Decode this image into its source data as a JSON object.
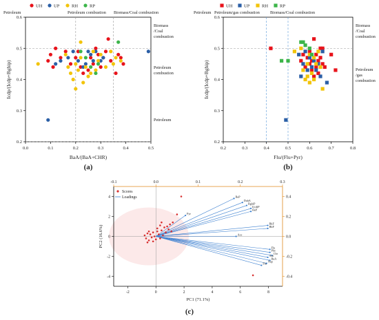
{
  "chart_data": [
    {
      "type": "scatter",
      "panel_label": "(a)",
      "xlabel": "BaA/(BaA+CHR)",
      "ylabel": "Icdp/(Icdp+Bghip)",
      "xlim": [
        0.0,
        0.5
      ],
      "ylim": [
        0.2,
        0.6
      ],
      "xticks": [
        "0.0",
        "0.1",
        "0.2",
        "0.3",
        "0.4",
        "0.5"
      ],
      "yticks": [
        "0.2",
        "0.3",
        "0.4",
        "0.5",
        "0.6"
      ],
      "grid": false,
      "legend": [
        "UH",
        "UP",
        "RH",
        "RP"
      ],
      "thresholds_x": [
        0.2,
        0.35
      ],
      "thresholds_y": [
        0.2,
        0.5
      ],
      "top_zone_labels": [
        "Petroleum",
        "Petroleum combustion",
        "Biomass/Coal combustion"
      ],
      "right_zone_labels": [
        [
          "Biomass",
          "/Coal",
          "combustion"
        ],
        [
          "Petroleum",
          "combustion"
        ],
        [
          "Petroleum"
        ]
      ],
      "series": [
        {
          "name": "UH",
          "color": "#e8131b",
          "points": [
            [
              0.09,
              0.46
            ],
            [
              0.1,
              0.48
            ],
            [
              0.11,
              0.44
            ],
            [
              0.12,
              0.5
            ],
            [
              0.14,
              0.47
            ],
            [
              0.16,
              0.49
            ],
            [
              0.18,
              0.45
            ],
            [
              0.2,
              0.47
            ],
            [
              0.21,
              0.49
            ],
            [
              0.22,
              0.44
            ],
            [
              0.23,
              0.42
            ],
            [
              0.25,
              0.43
            ],
            [
              0.26,
              0.47
            ],
            [
              0.27,
              0.45
            ],
            [
              0.28,
              0.5
            ],
            [
              0.29,
              0.48
            ],
            [
              0.3,
              0.44
            ],
            [
              0.31,
              0.47
            ],
            [
              0.32,
              0.49
            ],
            [
              0.33,
              0.53
            ],
            [
              0.34,
              0.46
            ],
            [
              0.36,
              0.42
            ],
            [
              0.37,
              0.48
            ],
            [
              0.38,
              0.47
            ],
            [
              0.39,
              0.45
            ]
          ]
        },
        {
          "name": "UP",
          "color": "#2b5fa6",
          "points": [
            [
              0.09,
              0.27
            ],
            [
              0.12,
              0.45
            ],
            [
              0.14,
              0.46
            ],
            [
              0.17,
              0.47
            ],
            [
              0.19,
              0.49
            ],
            [
              0.21,
              0.46
            ],
            [
              0.23,
              0.44
            ],
            [
              0.24,
              0.45
            ],
            [
              0.25,
              0.49
            ],
            [
              0.26,
              0.48
            ],
            [
              0.27,
              0.46
            ],
            [
              0.28,
              0.49
            ],
            [
              0.3,
              0.46
            ],
            [
              0.31,
              0.47
            ],
            [
              0.49,
              0.49
            ]
          ]
        },
        {
          "name": "RH",
          "color": "#f2c40b",
          "points": [
            [
              0.05,
              0.45
            ],
            [
              0.16,
              0.48
            ],
            [
              0.17,
              0.44
            ],
            [
              0.18,
              0.42
            ],
            [
              0.19,
              0.4
            ],
            [
              0.2,
              0.37
            ],
            [
              0.2,
              0.45
            ],
            [
              0.21,
              0.43
            ],
            [
              0.22,
              0.47
            ],
            [
              0.22,
              0.52
            ],
            [
              0.23,
              0.39
            ],
            [
              0.24,
              0.44
            ],
            [
              0.25,
              0.41
            ],
            [
              0.26,
              0.42
            ],
            [
              0.27,
              0.49
            ],
            [
              0.28,
              0.43
            ],
            [
              0.29,
              0.46
            ],
            [
              0.3,
              0.48
            ],
            [
              0.32,
              0.44
            ],
            [
              0.34,
              0.49
            ],
            [
              0.35,
              0.45
            ],
            [
              0.36,
              0.47
            ],
            [
              0.38,
              0.46
            ]
          ]
        },
        {
          "name": "RP",
          "color": "#3cb54a",
          "points": [
            [
              0.22,
              0.49
            ],
            [
              0.24,
              0.47
            ],
            [
              0.26,
              0.44
            ],
            [
              0.28,
              0.42
            ],
            [
              0.29,
              0.45
            ],
            [
              0.37,
              0.52
            ]
          ]
        }
      ]
    },
    {
      "type": "scatter",
      "panel_label": "(b)",
      "xlabel": "Flu/(Flu+Pyr)",
      "ylabel": "Icdp/(Icdp+Bghip)",
      "xlim": [
        0.2,
        0.8
      ],
      "ylim": [
        0.2,
        0.6
      ],
      "xticks": [
        "0.2",
        "0.3",
        "0.4",
        "0.5",
        "0.6",
        "0.7",
        "0.8"
      ],
      "yticks": [
        "0.2",
        "0.3",
        "0.4",
        "0.5",
        "0.6"
      ],
      "grid": false,
      "legend": [
        "UH",
        "UP",
        "RH",
        "RP"
      ],
      "thresholds_x": [
        0.4,
        0.5
      ],
      "thresholds_y": [
        0.5
      ],
      "top_zone_labels": [
        "Petroleum",
        "Petroleum/gas combustion",
        "Biomass/Coal combustion"
      ],
      "right_zone_labels": [
        [
          "Biomass",
          "/Coal",
          "combustion"
        ],
        [
          "Petroleum",
          "/gas",
          "combustion"
        ]
      ],
      "series": [
        {
          "name": "UH",
          "color": "#e8131b",
          "points": [
            [
              0.42,
              0.5
            ],
            [
              0.56,
              0.46
            ],
            [
              0.57,
              0.48
            ],
            [
              0.58,
              0.44
            ],
            [
              0.59,
              0.47
            ],
            [
              0.6,
              0.45
            ],
            [
              0.6,
              0.49
            ],
            [
              0.61,
              0.43
            ],
            [
              0.61,
              0.46
            ],
            [
              0.62,
              0.53
            ],
            [
              0.62,
              0.41
            ],
            [
              0.63,
              0.48
            ],
            [
              0.63,
              0.44
            ],
            [
              0.64,
              0.46
            ],
            [
              0.64,
              0.42
            ],
            [
              0.65,
              0.5
            ],
            [
              0.65,
              0.47
            ],
            [
              0.66,
              0.45
            ],
            [
              0.66,
              0.5
            ],
            [
              0.67,
              0.44
            ],
            [
              0.7,
              0.48
            ],
            [
              0.72,
              0.43
            ]
          ]
        },
        {
          "name": "UP",
          "color": "#2b5fa6",
          "points": [
            [
              0.49,
              0.27
            ],
            [
              0.55,
              0.48
            ],
            [
              0.56,
              0.41
            ],
            [
              0.57,
              0.45
            ],
            [
              0.58,
              0.49
            ],
            [
              0.59,
              0.43
            ],
            [
              0.6,
              0.47
            ],
            [
              0.61,
              0.44
            ],
            [
              0.62,
              0.46
            ],
            [
              0.63,
              0.43
            ],
            [
              0.64,
              0.45
            ],
            [
              0.65,
              0.41
            ],
            [
              0.66,
              0.49
            ],
            [
              0.68,
              0.39
            ]
          ]
        },
        {
          "name": "RH",
          "color": "#f2c40b",
          "points": [
            [
              0.53,
              0.49
            ],
            [
              0.56,
              0.5
            ],
            [
              0.57,
              0.43
            ],
            [
              0.58,
              0.4
            ],
            [
              0.59,
              0.45
            ],
            [
              0.59,
              0.41
            ],
            [
              0.6,
              0.39
            ],
            [
              0.6,
              0.48
            ],
            [
              0.61,
              0.42
            ],
            [
              0.62,
              0.47
            ],
            [
              0.62,
              0.4
            ],
            [
              0.63,
              0.45
            ],
            [
              0.64,
              0.49
            ],
            [
              0.65,
              0.44
            ],
            [
              0.66,
              0.37
            ]
          ]
        },
        {
          "name": "RP",
          "color": "#3cb54a",
          "points": [
            [
              0.47,
              0.46
            ],
            [
              0.5,
              0.46
            ],
            [
              0.56,
              0.52
            ],
            [
              0.57,
              0.52
            ],
            [
              0.58,
              0.51
            ],
            [
              0.6,
              0.5
            ],
            [
              0.61,
              0.48
            ]
          ]
        }
      ]
    },
    {
      "type": "scatter",
      "panel_label": "(c)",
      "subtype": "biplot",
      "xlabel": "PC1 (71.1%)",
      "ylabel": "PC2 (16.6%)",
      "xlim": [
        -3,
        9
      ],
      "ylim": [
        -5,
        5
      ],
      "xticks": [
        "-2",
        "0",
        "2",
        "4",
        "6",
        "8"
      ],
      "yticks": [
        "-4",
        "-2",
        "0",
        "2",
        "4"
      ],
      "top_xlim": [
        -0.1,
        0.3
      ],
      "top_xticks": [
        "-0.1",
        "0.0",
        "0.1",
        "0.2",
        "0.3"
      ],
      "right_ylim": [
        -0.5,
        0.5
      ],
      "right_yticks": [
        "-0.4",
        "-0.2",
        "0.0",
        "0.2",
        "0.4"
      ],
      "legend": [
        "Scores",
        "Loadings"
      ],
      "score_color": "#d83030",
      "loading_color": "#3a7fd0",
      "scores": [
        [
          -0.8,
          0.1
        ],
        [
          -0.7,
          -0.2
        ],
        [
          -0.6,
          0.3
        ],
        [
          -0.5,
          -0.4
        ],
        [
          -0.4,
          0.2
        ],
        [
          -0.3,
          -0.1
        ],
        [
          -0.2,
          0.4
        ],
        [
          -0.1,
          0.0
        ],
        [
          0.0,
          -0.3
        ],
        [
          0.1,
          0.5
        ],
        [
          0.2,
          0.2
        ],
        [
          0.3,
          -0.2
        ],
        [
          0.4,
          0.6
        ],
        [
          0.5,
          0.1
        ],
        [
          0.6,
          0.9
        ],
        [
          0.7,
          0.4
        ],
        [
          0.8,
          1.0
        ],
        [
          0.9,
          0.7
        ],
        [
          1.0,
          1.2
        ],
        [
          1.1,
          0.5
        ],
        [
          1.5,
          2.2
        ],
        [
          1.8,
          4.0
        ],
        [
          0.4,
          1.4
        ],
        [
          -0.6,
          -0.6
        ],
        [
          -0.5,
          0.5
        ],
        [
          -0.2,
          -0.5
        ],
        [
          0.1,
          0.8
        ],
        [
          0.3,
          1.1
        ],
        [
          6.9,
          -3.9
        ],
        [
          1.2,
          1.4
        ]
      ],
      "loadings": [
        {
          "label": "BaP",
          "x": 0.185,
          "y": 0.38
        },
        {
          "label": "DahA",
          "x": 0.205,
          "y": 0.34
        },
        {
          "label": "BghiP",
          "x": 0.215,
          "y": 0.31
        },
        {
          "label": "I(cd)P",
          "x": 0.225,
          "y": 0.28
        },
        {
          "label": "BeP",
          "x": 0.225,
          "y": 0.25
        },
        {
          "label": "Pyr",
          "x": 0.07,
          "y": 0.21
        },
        {
          "label": "BkF",
          "x": 0.265,
          "y": 0.11
        },
        {
          "label": "BbF",
          "x": 0.265,
          "y": 0.08
        },
        {
          "label": "Ace",
          "x": 0.19,
          "y": 0.0
        },
        {
          "label": "Flu",
          "x": 0.27,
          "y": -0.13
        },
        {
          "label": "Phe",
          "x": 0.27,
          "y": -0.16
        },
        {
          "label": "Chr",
          "x": 0.275,
          "y": -0.19
        },
        {
          "label": "Ant",
          "x": 0.265,
          "y": -0.21
        },
        {
          "label": "BaA",
          "x": 0.27,
          "y": -0.24
        },
        {
          "label": "Nap",
          "x": 0.262,
          "y": -0.27
        },
        {
          "label": "Fla",
          "x": 0.25,
          "y": -0.29
        }
      ]
    }
  ]
}
